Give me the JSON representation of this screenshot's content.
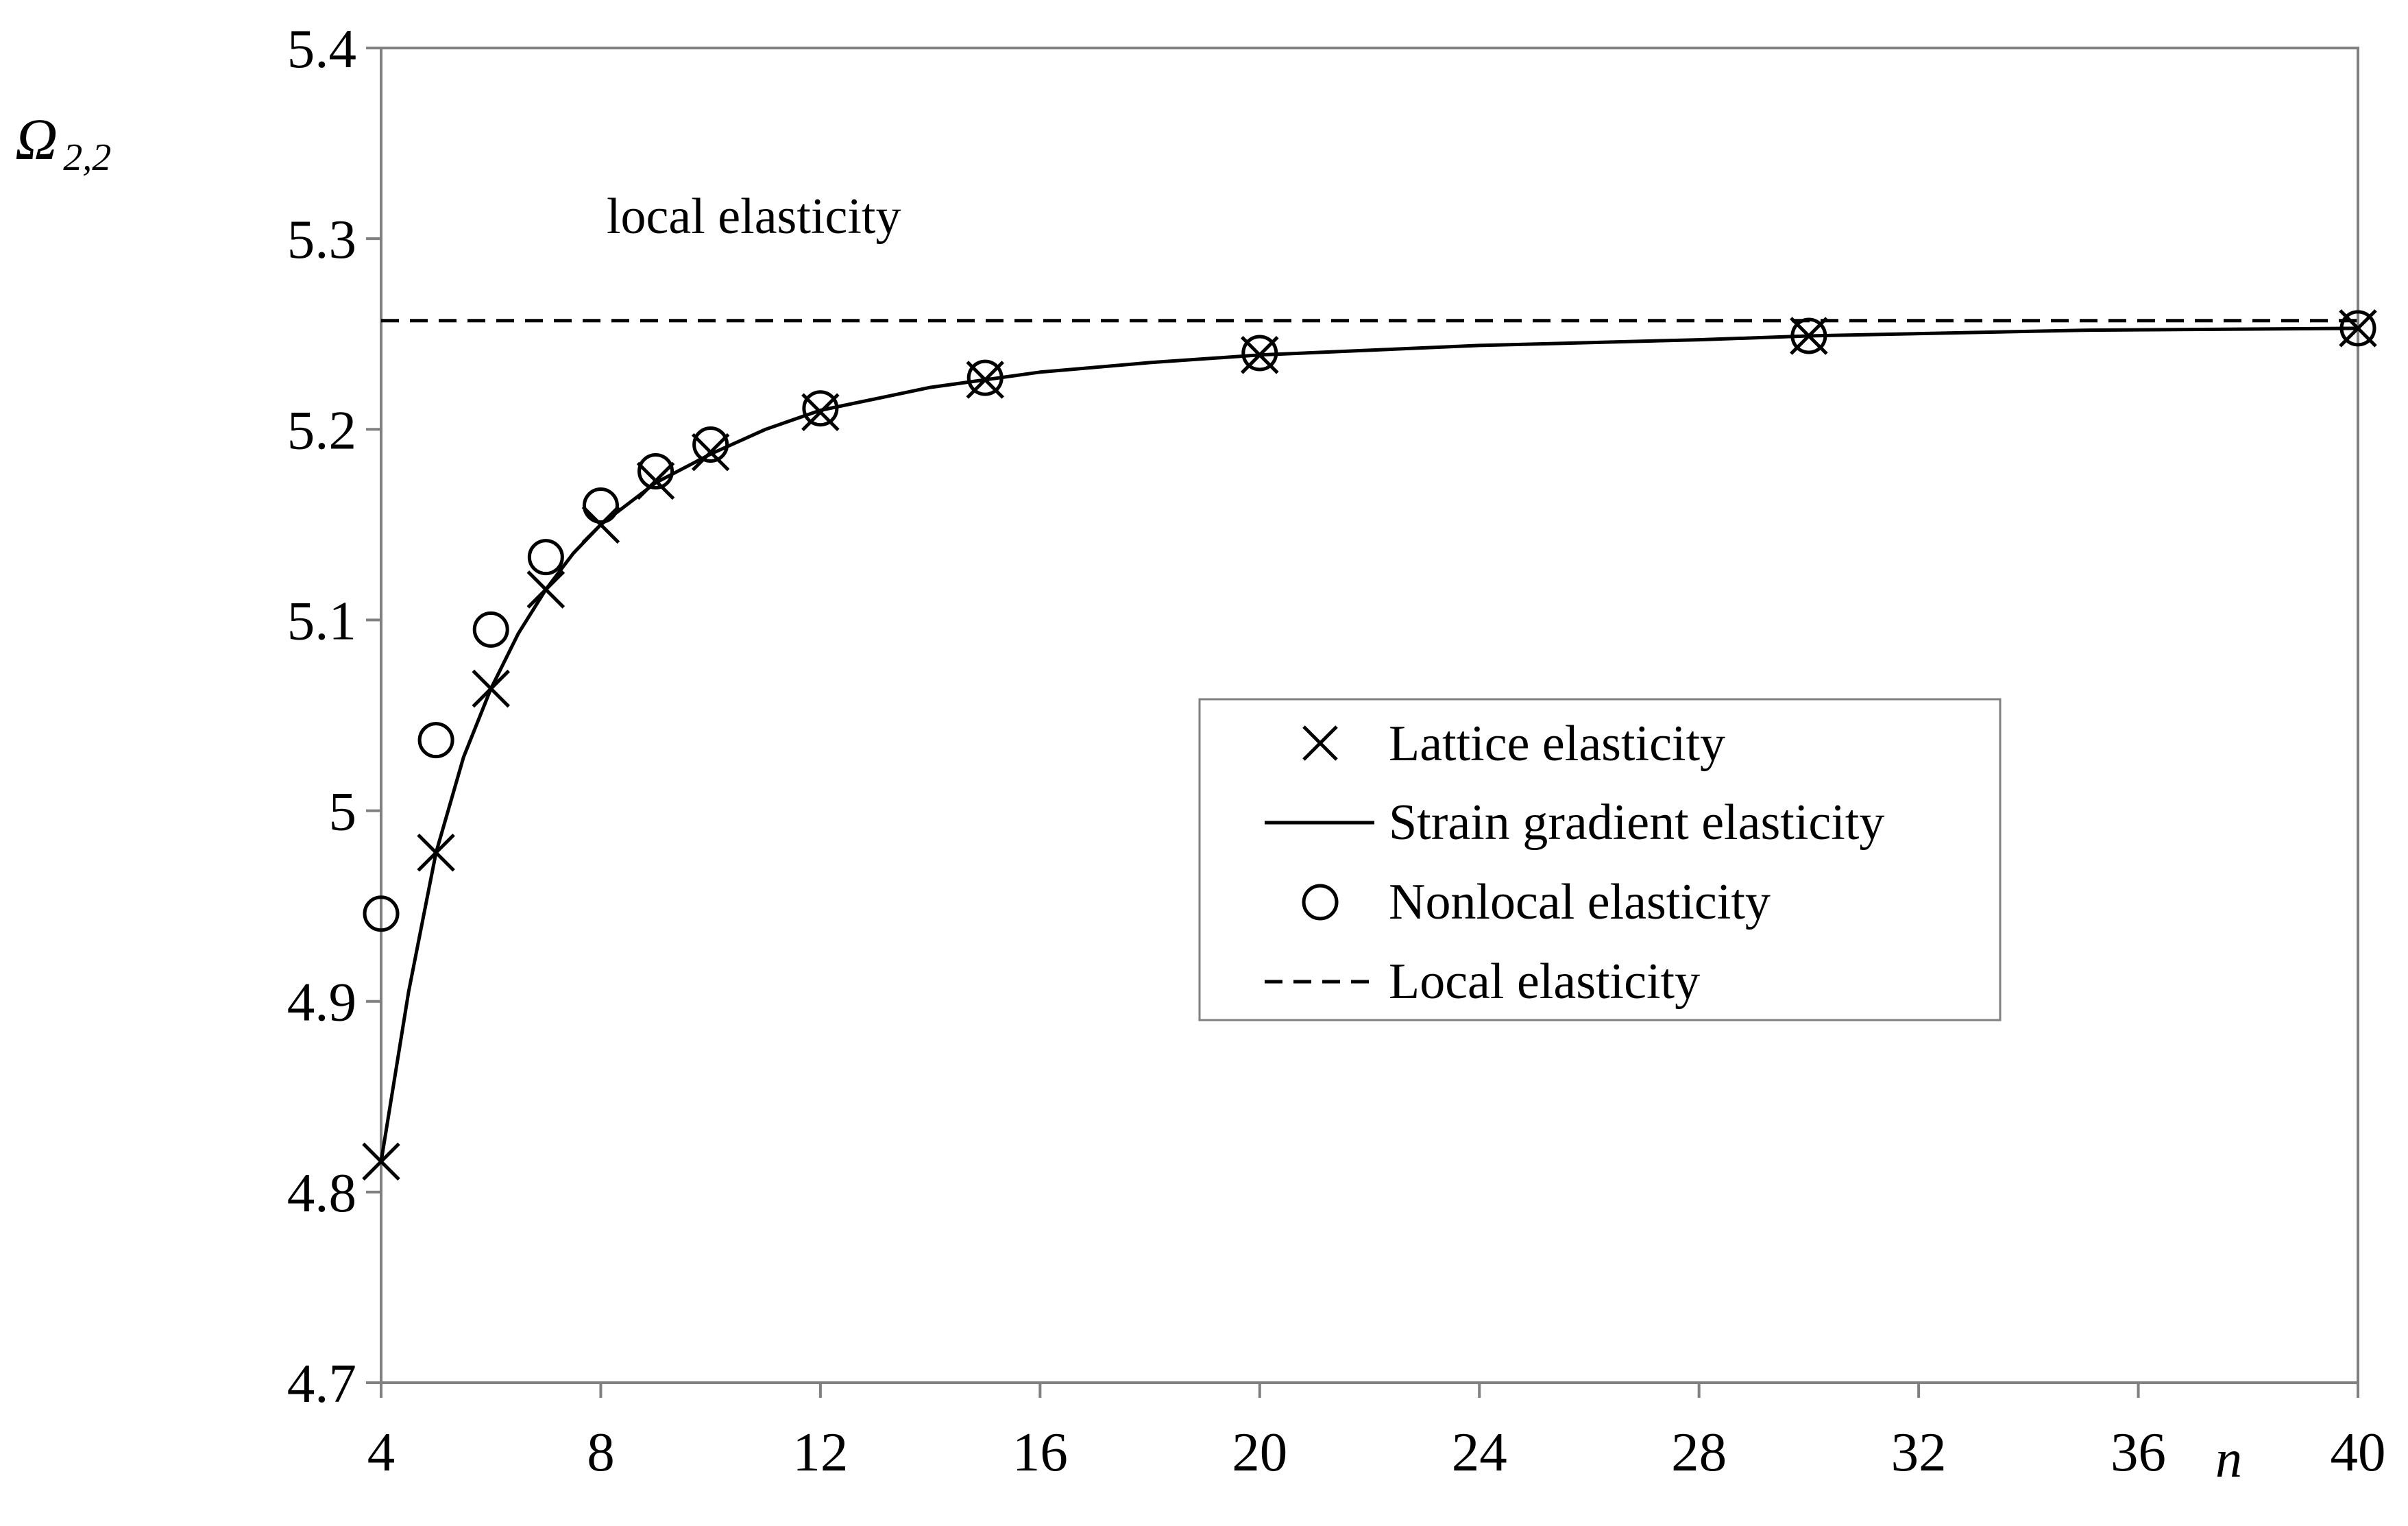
{
  "chart_data": {
    "type": "line",
    "title": "",
    "xlabel": "n",
    "ylabel_main": "Ω",
    "ylabel_sub": "2,2",
    "xlim": [
      4,
      40
    ],
    "ylim": [
      4.7,
      5.4
    ],
    "x_ticks": [
      4,
      8,
      12,
      16,
      20,
      24,
      28,
      32,
      36,
      40
    ],
    "x_tick_labels": [
      "4",
      "8",
      "12",
      "16",
      "20",
      "24",
      "28",
      "32",
      "36",
      "40"
    ],
    "y_ticks": [
      4.7,
      4.8,
      4.9,
      5.0,
      5.1,
      5.2,
      5.3,
      5.4
    ],
    "y_tick_labels": [
      "4.7",
      "4.8",
      "4.9",
      "5",
      "5.1",
      "5.2",
      "5.3",
      "5.4"
    ],
    "grid": false,
    "legend_position": "center-right",
    "annotations": [
      {
        "text": "local elasticity",
        "x": 9.5,
        "y": 5.296
      }
    ],
    "series": [
      {
        "name": "Lattice elasticity",
        "style": "marker-x",
        "x": [
          4,
          5,
          6,
          7,
          8,
          9,
          10,
          12,
          15,
          20,
          30,
          40
        ],
        "y": [
          4.816,
          4.978,
          5.064,
          5.116,
          5.15,
          5.173,
          5.188,
          5.209,
          5.226,
          5.239,
          5.249,
          5.253
        ]
      },
      {
        "name": "Strain gradient elasticity",
        "style": "solid-line",
        "x": [
          4,
          4.5,
          5,
          5.5,
          6,
          6.5,
          7,
          7.5,
          8,
          9,
          10,
          11,
          12,
          14,
          15,
          16,
          18,
          20,
          24,
          28,
          30,
          35,
          40
        ],
        "y": [
          4.816,
          4.905,
          4.978,
          5.028,
          5.064,
          5.093,
          5.116,
          5.135,
          5.15,
          5.172,
          5.187,
          5.2,
          5.21,
          5.222,
          5.226,
          5.23,
          5.235,
          5.239,
          5.244,
          5.247,
          5.249,
          5.252,
          5.253
        ]
      },
      {
        "name": "Nonlocal elasticity",
        "style": "marker-circle",
        "x": [
          4,
          5,
          6,
          7,
          8,
          9,
          10,
          12,
          15,
          20,
          30,
          40
        ],
        "y": [
          4.946,
          5.037,
          5.095,
          5.133,
          5.16,
          5.178,
          5.192,
          5.211,
          5.227,
          5.24,
          5.249,
          5.253
        ]
      },
      {
        "name": "Local elasticity",
        "style": "dashed-line",
        "x": [
          4,
          40
        ],
        "y": [
          5.257,
          5.257
        ]
      }
    ]
  }
}
